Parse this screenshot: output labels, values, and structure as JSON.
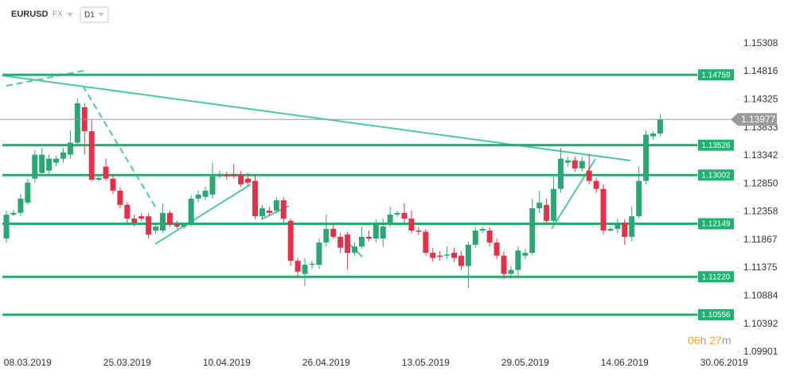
{
  "header": {
    "symbol": "EURUSD",
    "market": "FX",
    "timeframe": "D1"
  },
  "countdown": {
    "hours": "06",
    "hours_unit": "h",
    "minutes": "27",
    "minutes_unit": "m"
  },
  "chart_data": {
    "type": "candlestick",
    "up_color": "#2aa775",
    "down_color": "#e5304a",
    "open": [
      1.1189,
      1.1231,
      1.1234,
      1.1252,
      1.1294,
      1.1304,
      1.1308,
      1.1322,
      1.1329,
      1.1336,
      1.1357,
      1.1419,
      1.1377,
      1.1292,
      1.1315,
      1.1294,
      1.1273,
      1.1248,
      1.1224,
      1.1228,
      1.1228,
      1.1203,
      1.1203,
      1.1234,
      1.1214,
      1.121,
      1.1214,
      1.1259,
      1.1262,
      1.1266,
      1.1298,
      1.1301,
      1.1301,
      1.1301,
      1.1294,
      1.129,
      1.1228,
      1.1238,
      1.1238,
      1.1256,
      1.122,
      1.115,
      1.1127,
      1.1143,
      1.1143,
      1.1182,
      1.1206,
      1.1192,
      1.1196,
      1.1164,
      1.1175,
      1.1192,
      1.1189,
      1.1189,
      1.1214,
      1.1231,
      1.1234,
      1.1224,
      1.1203,
      1.1201,
      1.1164,
      1.1159,
      1.1159,
      1.1164,
      1.1159,
      1.1141,
      1.1178,
      1.1203,
      1.1203,
      1.1182,
      1.1159,
      1.1127,
      1.1134,
      1.1159,
      1.1164,
      1.1242,
      1.1248,
      1.122,
      1.1276,
      1.1322,
      1.1326,
      1.1312,
      1.1308,
      1.129,
      1.1276,
      1.1203,
      1.1206,
      1.1217,
      1.1192,
      1.1228,
      1.129,
      1.1368,
      1.1373
    ],
    "high": [
      1.1238,
      1.1239,
      1.1267,
      1.1294,
      1.1344,
      1.1348,
      1.1336,
      1.1334,
      1.1348,
      1.1379,
      1.1435,
      1.1426,
      1.1398,
      1.1301,
      1.1329,
      1.1301,
      1.1279,
      1.1253,
      1.1231,
      1.1234,
      1.1234,
      1.1217,
      1.1251,
      1.1238,
      1.122,
      1.1217,
      1.1265,
      1.1273,
      1.128,
      1.1322,
      1.1308,
      1.1306,
      1.132,
      1.1308,
      1.1304,
      1.1301,
      1.1248,
      1.1245,
      1.1262,
      1.1262,
      1.1224,
      1.1155,
      1.1155,
      1.115,
      1.1189,
      1.1231,
      1.1217,
      1.1199,
      1.1201,
      1.1182,
      1.121,
      1.1203,
      1.1223,
      1.1224,
      1.1245,
      1.1238,
      1.1251,
      1.1238,
      1.1209,
      1.1206,
      1.1173,
      1.1167,
      1.1175,
      1.1173,
      1.1167,
      1.1184,
      1.1209,
      1.1209,
      1.1209,
      1.1189,
      1.1167,
      1.1141,
      1.1175,
      1.1171,
      1.1259,
      1.1273,
      1.1259,
      1.1298,
      1.1348,
      1.1332,
      1.1333,
      1.1332,
      1.1337,
      1.1295,
      1.1284,
      1.121,
      1.1224,
      1.1223,
      1.1245,
      1.1315,
      1.1379,
      1.1377,
      1.1407
    ],
    "low": [
      1.1182,
      1.1228,
      1.1228,
      1.1248,
      1.1287,
      1.1298,
      1.1301,
      1.1316,
      1.1322,
      1.1329,
      1.1351,
      1.1336,
      1.129,
      1.129,
      1.129,
      1.1267,
      1.1242,
      1.1216,
      1.121,
      1.122,
      1.1189,
      1.1198,
      1.1199,
      1.1209,
      1.1206,
      1.1206,
      1.121,
      1.1253,
      1.1256,
      1.1259,
      1.1294,
      1.1292,
      1.1294,
      1.1279,
      1.1281,
      1.1223,
      1.1223,
      1.1228,
      1.1234,
      1.1217,
      1.1141,
      1.112,
      1.1106,
      1.1136,
      1.1136,
      1.1175,
      1.1188,
      1.1164,
      1.1134,
      1.1159,
      1.1171,
      1.1184,
      1.1182,
      1.1175,
      1.1209,
      1.1227,
      1.1217,
      1.1198,
      1.1195,
      1.1159,
      1.1148,
      1.115,
      1.1153,
      1.1148,
      1.1134,
      1.1103,
      1.1173,
      1.1199,
      1.1175,
      1.1153,
      1.1118,
      1.112,
      1.1122,
      1.1153,
      1.1159,
      1.1234,
      1.1214,
      1.1213,
      1.1269,
      1.1315,
      1.1306,
      1.1306,
      1.1284,
      1.1269,
      1.1196,
      1.1201,
      1.1198,
      1.1178,
      1.1184,
      1.1224,
      1.1284,
      1.1362,
      1.1368
    ],
    "close": [
      1.1231,
      1.1234,
      1.1259,
      1.1287,
      1.1336,
      1.1336,
      1.1329,
      1.1329,
      1.134,
      1.1357,
      1.1426,
      1.1377,
      1.1292,
      1.1295,
      1.1294,
      1.1273,
      1.1248,
      1.1224,
      1.1217,
      1.1224,
      1.1196,
      1.121,
      1.1234,
      1.1214,
      1.121,
      1.1214,
      1.1259,
      1.1266,
      1.1273,
      1.1298,
      1.1301,
      1.1298,
      1.1298,
      1.1284,
      1.1287,
      1.1228,
      1.1242,
      1.1234,
      1.1256,
      1.1224,
      1.115,
      1.1131,
      1.1143,
      1.1145,
      1.1182,
      1.1206,
      1.1192,
      1.1173,
      1.1164,
      1.1175,
      1.1192,
      1.1189,
      1.1214,
      1.121,
      1.1231,
      1.1234,
      1.1224,
      1.1203,
      1.1201,
      1.1164,
      1.1155,
      1.1157,
      1.1161,
      1.1155,
      1.1141,
      1.1178,
      1.1203,
      1.1206,
      1.1182,
      1.1159,
      1.1127,
      1.1134,
      1.1168,
      1.1164,
      1.1242,
      1.1252,
      1.122,
      1.1276,
      1.1329,
      1.1326,
      1.1312,
      1.1325,
      1.129,
      1.1276,
      1.1203,
      1.1206,
      1.1217,
      1.1192,
      1.1228,
      1.129,
      1.1371,
      1.1373,
      1.1398
    ],
    "xlim": [
      -0.9,
      102.7
    ],
    "xticks": [
      {
        "value": 3,
        "label": "08.03.2019"
      },
      {
        "value": 17,
        "label": "25.03.2019"
      },
      {
        "value": 31,
        "label": "10.04.2019"
      },
      {
        "value": 45,
        "label": "26.04.2019"
      },
      {
        "value": 59,
        "label": "13.05.2019"
      },
      {
        "value": 73,
        "label": "29.05.2019"
      },
      {
        "value": 87,
        "label": "14.06.2019"
      },
      {
        "value": 101,
        "label": "30.06.2019"
      }
    ],
    "ylim": [
      1.0983,
      1.1607
    ],
    "yticks": [
      1.15308,
      1.14816,
      1.14325,
      1.13833,
      1.13342,
      {
        "value": 1.1285,
        "label": "1.12850"
      },
      1.12358,
      1.11867,
      1.11375,
      1.10884,
      1.10392,
      1.09901
    ],
    "levels": [
      1.14759,
      1.13526,
      1.13002,
      1.12149,
      {
        "value": 1.1122,
        "label": "1.11220"
      },
      1.10556
    ],
    "level_color": "#1db36f",
    "current_price": 1.13977,
    "current_price_color": "#9a9a9a"
  }
}
